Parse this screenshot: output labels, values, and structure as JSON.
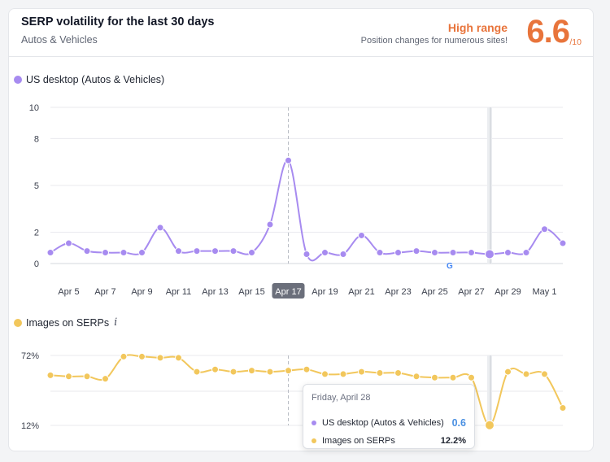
{
  "header": {
    "title": "SERP volatility for the last 30 days",
    "subtitle": "Autos & Vehicles",
    "range_label": "High range",
    "range_desc": "Position changes for numerous sites!",
    "score": "6.6",
    "score_max": "/10"
  },
  "colors": {
    "purple": "#a78bf0",
    "yellow": "#f2c75c",
    "orange": "#e8743b",
    "blue": "#4a90e2"
  },
  "chart_data": [
    {
      "type": "line",
      "legend": "US desktop (Autos & Vehicles)",
      "y_ticks": [
        "10",
        "8",
        "5",
        "2",
        "0"
      ],
      "y_tick_values": [
        10,
        8,
        5,
        2,
        0
      ],
      "ylim": [
        0,
        10
      ],
      "x": [
        "Apr 4",
        "Apr 5",
        "Apr 6",
        "Apr 7",
        "Apr 8",
        "Apr 9",
        "Apr 10",
        "Apr 11",
        "Apr 12",
        "Apr 13",
        "Apr 14",
        "Apr 15",
        "Apr 16",
        "Apr 17",
        "Apr 18",
        "Apr 19",
        "Apr 20",
        "Apr 21",
        "Apr 22",
        "Apr 23",
        "Apr 24",
        "Apr 25",
        "Apr 26",
        "Apr 27",
        "Apr 28",
        "Apr 29",
        "Apr 30",
        "May 1",
        "May 2"
      ],
      "x_tick_labels": [
        "Apr 5",
        "Apr 7",
        "Apr 9",
        "Apr 11",
        "Apr 13",
        "Apr 15",
        "Apr 17",
        "Apr 19",
        "Apr 21",
        "Apr 23",
        "Apr 25",
        "Apr 27",
        "Apr 29",
        "May 1"
      ],
      "x_tick_indices": [
        1,
        3,
        5,
        7,
        9,
        11,
        13,
        15,
        17,
        19,
        21,
        23,
        25,
        27
      ],
      "highlighted_tick": "Apr 17",
      "values": [
        0.7,
        1.3,
        0.8,
        0.7,
        0.7,
        0.7,
        2.3,
        0.8,
        0.8,
        0.8,
        0.8,
        0.7,
        2.5,
        6.6,
        0.6,
        0.7,
        0.6,
        1.8,
        0.7,
        0.7,
        0.8,
        0.7,
        0.7,
        0.7,
        0.6,
        0.7,
        0.7,
        2.2,
        1.3
      ],
      "selected_index": 24
    },
    {
      "type": "line",
      "legend": "Images on SERPs",
      "y_ticks": [
        "72%",
        "12%"
      ],
      "y_tick_values": [
        72,
        12
      ],
      "ylim": [
        12,
        72
      ],
      "x": [
        "Apr 4",
        "Apr 5",
        "Apr 6",
        "Apr 7",
        "Apr 8",
        "Apr 9",
        "Apr 10",
        "Apr 11",
        "Apr 12",
        "Apr 13",
        "Apr 14",
        "Apr 15",
        "Apr 16",
        "Apr 17",
        "Apr 18",
        "Apr 19",
        "Apr 20",
        "Apr 21",
        "Apr 22",
        "Apr 23",
        "Apr 24",
        "Apr 25",
        "Apr 26",
        "Apr 27",
        "Apr 28",
        "Apr 29",
        "Apr 30",
        "May 1",
        "May 2"
      ],
      "values": [
        55,
        54,
        54,
        52,
        71,
        71,
        70,
        70,
        58,
        60,
        58,
        59,
        58,
        59,
        60,
        56,
        56,
        58,
        57,
        57,
        54,
        53,
        53,
        53,
        12.2,
        58,
        56,
        56,
        27
      ],
      "selected_index": 24
    }
  ],
  "tooltip": {
    "date": "Friday, April 28",
    "rows": [
      {
        "label": "US desktop (Autos & Vehicles)",
        "value": "0.6"
      },
      {
        "label": "Images on SERPs",
        "value": "12.2%"
      }
    ]
  }
}
